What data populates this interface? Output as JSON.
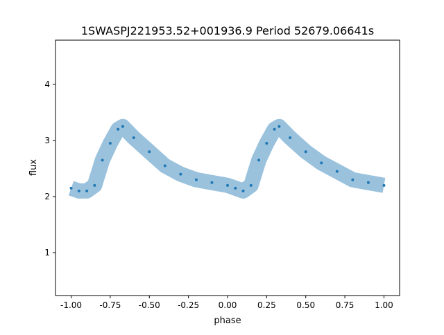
{
  "chart_data": {
    "type": "scatter",
    "title": "1SWASPJ221953.52+001936.9 Period 52679.06641s",
    "xlabel": "phase",
    "ylabel": "flux",
    "xlim": [
      -1.1,
      1.1
    ],
    "ylim": [
      0.235,
      4.79
    ],
    "xticks": [
      "-1.00",
      "-0.75",
      "-0.50",
      "-0.25",
      "0.00",
      "0.25",
      "0.50",
      "0.75",
      "1.00"
    ],
    "xtick_values": [
      -1.0,
      -0.75,
      -0.5,
      -0.25,
      0.0,
      0.25,
      0.5,
      0.75,
      1.0
    ],
    "yticks": [
      "1",
      "2",
      "3",
      "4"
    ],
    "ytick_values": [
      1,
      2,
      3,
      4
    ],
    "grid": false,
    "color": "#1f77b4",
    "x": [
      -1.0,
      -0.95,
      -0.9,
      -0.85,
      -0.8,
      -0.75,
      -0.7,
      -0.67,
      -0.6,
      -0.5,
      -0.4,
      -0.3,
      -0.2,
      -0.1,
      0.0,
      0.05,
      0.1,
      0.15,
      0.2,
      0.25,
      0.3,
      0.33,
      0.4,
      0.5,
      0.6,
      0.7,
      0.8,
      0.9,
      1.0
    ],
    "y": [
      2.15,
      2.1,
      2.1,
      2.2,
      2.65,
      2.95,
      3.2,
      3.25,
      3.05,
      2.8,
      2.55,
      2.4,
      2.3,
      2.25,
      2.2,
      2.15,
      2.1,
      2.2,
      2.65,
      2.95,
      3.2,
      3.25,
      3.05,
      2.8,
      2.6,
      2.45,
      2.3,
      2.25,
      2.2
    ]
  }
}
